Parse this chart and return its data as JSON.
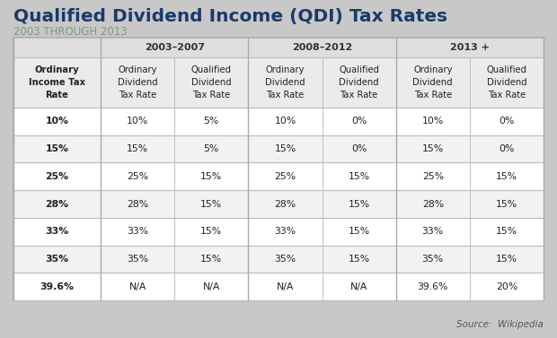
{
  "title": "Qualified Dividend Income (QDI) Tax Rates",
  "subtitle": "2003 THROUGH 2013",
  "source": "Source:  Wikipedia",
  "bg_color": "#c8c8c8",
  "title_color": "#1a3a6b",
  "subtitle_color": "#7a9a7a",
  "col_group_headers": [
    "",
    "2003–2007",
    "2008–2012",
    "2013 +"
  ],
  "col_subheaders": [
    "Ordinary\nIncome Tax\nRate",
    "Ordinary\nDividend\nTax Rate",
    "Qualified\nDividend\nTax Rate",
    "Ordinary\nDividend\nTax Rate",
    "Qualified\nDividend\nTax Rate",
    "Ordinary\nDividend\nTax Rate",
    "Qualified\nDividend\nTax Rate"
  ],
  "rows": [
    [
      "10%",
      "10%",
      "5%",
      "10%",
      "0%",
      "10%",
      "0%"
    ],
    [
      "15%",
      "15%",
      "5%",
      "15%",
      "0%",
      "15%",
      "0%"
    ],
    [
      "25%",
      "25%",
      "15%",
      "25%",
      "15%",
      "25%",
      "15%"
    ],
    [
      "28%",
      "28%",
      "15%",
      "28%",
      "15%",
      "28%",
      "15%"
    ],
    [
      "33%",
      "33%",
      "15%",
      "33%",
      "15%",
      "33%",
      "15%"
    ],
    [
      "35%",
      "35%",
      "15%",
      "35%",
      "15%",
      "35%",
      "15%"
    ],
    [
      "39.6%",
      "N/A",
      "N/A",
      "N/A",
      "N/A",
      "39.6%",
      "20%"
    ]
  ]
}
